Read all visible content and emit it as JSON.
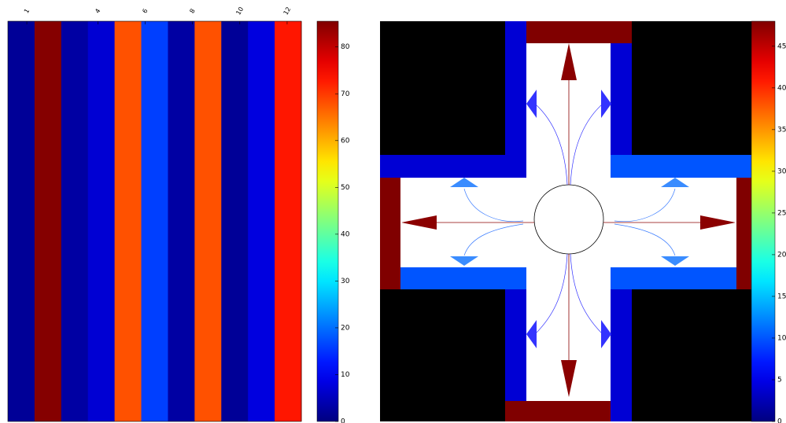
{
  "chart_data": [
    {
      "type": "heatmap",
      "colormap": "jet",
      "xlim": [
        0.2,
        12.6
      ],
      "xticks": [
        1,
        4,
        6,
        8,
        10,
        12
      ],
      "values": [
        2,
        85,
        3,
        7,
        68,
        16,
        3,
        68,
        2,
        8,
        73
      ],
      "zlim": [
        0,
        85.5
      ],
      "colorbar_ticks": [
        0,
        10,
        20,
        30,
        40,
        50,
        60,
        70,
        80
      ]
    },
    {
      "type": "region-map",
      "colormap": "jet",
      "values": [
        48,
        48,
        48,
        48,
        4,
        4,
        4,
        10,
        10,
        4,
        10,
        4
      ],
      "zlim": [
        0,
        48
      ],
      "colorbar_ticks": [
        0,
        5,
        10,
        15,
        20,
        25,
        30,
        35,
        40,
        45
      ]
    }
  ]
}
